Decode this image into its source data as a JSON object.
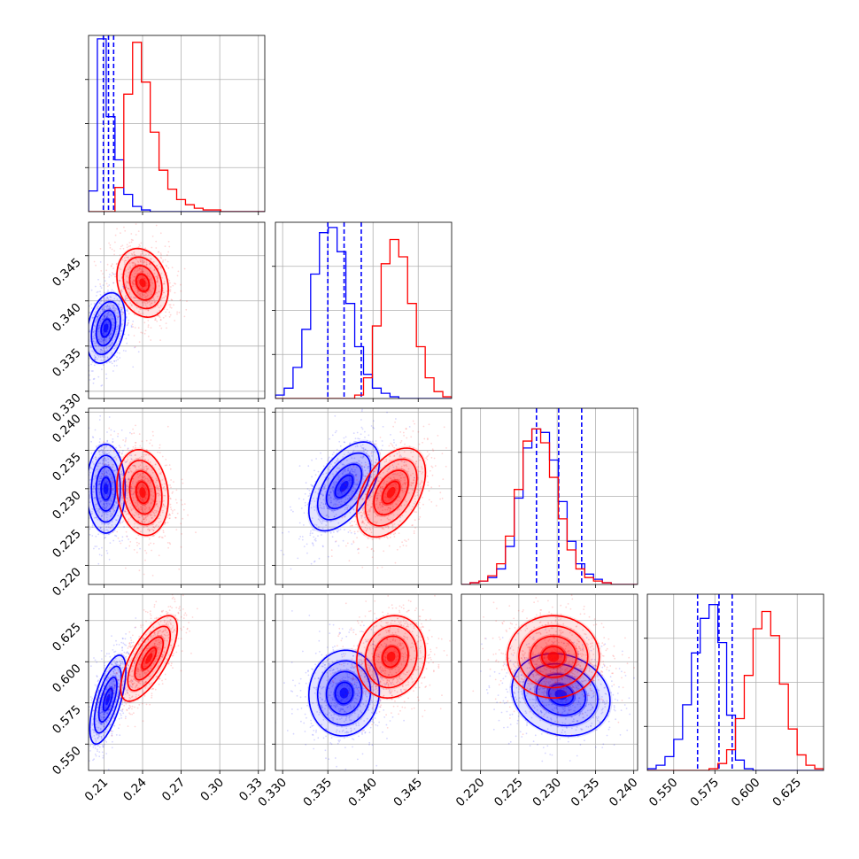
{
  "chart_data": {
    "type": "corner",
    "series": [
      {
        "name": "",
        "color": "#0000ff"
      },
      {
        "name": "",
        "color": "#ff0000"
      }
    ],
    "parameters": [
      {
        "ticks": [
          "0.21",
          "0.24",
          "0.27",
          "0.30",
          "0.33"
        ],
        "range": [
          0.198,
          0.335
        ],
        "tick_values": [
          0.21,
          0.24,
          0.27,
          0.3,
          0.33
        ]
      },
      {
        "ticks": [
          "0.330",
          "0.335",
          "0.340",
          "0.345"
        ],
        "range": [
          0.3292,
          0.3487
        ],
        "tick_values": [
          0.33,
          0.335,
          0.34,
          0.345
        ]
      },
      {
        "ticks": [
          "0.220",
          "0.225",
          "0.230",
          "0.235",
          "0.240"
        ],
        "range": [
          0.2175,
          0.2405
        ],
        "tick_values": [
          0.22,
          0.225,
          0.23,
          0.235,
          0.24
        ]
      },
      {
        "ticks": [
          "0.550",
          "0.575",
          "0.600",
          "0.625"
        ],
        "range": [
          0.534,
          0.641
        ],
        "tick_values": [
          0.55,
          0.575,
          0.6,
          0.625
        ]
      }
    ],
    "histograms": {
      "blue": [
        {
          "min": 0.198,
          "max": 0.335,
          "counts": [
            12,
            100,
            55,
            30,
            10,
            3,
            1,
            0,
            0,
            0,
            0,
            0,
            0,
            0,
            0,
            0,
            0,
            0,
            0,
            0
          ],
          "quantiles": [
            0.2095,
            0.2135,
            0.2175
          ]
        },
        {
          "min": 0.3292,
          "max": 0.3487,
          "counts": [
            2,
            6,
            18,
            40,
            72,
            96,
            99,
            85,
            55,
            30,
            14,
            6,
            3,
            1,
            0,
            0,
            0,
            0,
            0,
            0
          ],
          "quantiles": [
            0.335,
            0.3368,
            0.3387
          ]
        },
        {
          "min": 0.2175,
          "max": 0.2405,
          "counts": [
            0,
            1,
            2,
            4,
            9,
            22,
            50,
            79,
            90,
            88,
            72,
            48,
            25,
            12,
            6,
            3,
            1,
            0,
            0,
            0
          ],
          "quantiles": [
            0.2273,
            0.2302,
            0.2332
          ]
        },
        {
          "min": 0.534,
          "max": 0.641,
          "counts": [
            1,
            3,
            8,
            18,
            38,
            68,
            88,
            96,
            74,
            32,
            6,
            1,
            0,
            0,
            0,
            0,
            0,
            0,
            0,
            0
          ],
          "quantiles": [
            0.5645,
            0.5775,
            0.5855
          ]
        }
      ],
      "red": [
        {
          "min": 0.198,
          "max": 0.335,
          "counts": [
            0,
            0,
            0,
            14,
            68,
            98,
            75,
            46,
            24,
            13,
            7,
            4,
            2,
            1,
            1,
            0,
            0,
            0,
            0,
            0
          ],
          "quantiles": []
        },
        {
          "min": 0.3292,
          "max": 0.3487,
          "counts": [
            0,
            0,
            0,
            0,
            0,
            0,
            0,
            0,
            0,
            2,
            12,
            42,
            78,
            92,
            82,
            55,
            30,
            12,
            4,
            1
          ],
          "quantiles": []
        },
        {
          "min": 0.2175,
          "max": 0.2405,
          "counts": [
            0,
            1,
            2,
            5,
            12,
            28,
            55,
            83,
            90,
            82,
            62,
            38,
            20,
            9,
            4,
            2,
            1,
            0,
            0,
            0
          ],
          "quantiles": []
        },
        {
          "min": 0.534,
          "max": 0.641,
          "counts": [
            0,
            0,
            0,
            0,
            0,
            0,
            0,
            1,
            4,
            12,
            30,
            55,
            82,
            92,
            78,
            50,
            24,
            9,
            3,
            1
          ],
          "quantiles": []
        }
      ]
    },
    "blobs": {
      "blue": [
        {
          "pair": [
            0,
            1
          ],
          "mx": 0.2115,
          "my": 0.337,
          "sx": 0.0075,
          "sy": 0.00195,
          "rho": 0.3
        },
        {
          "pair": [
            0,
            2
          ],
          "mx": 0.2115,
          "my": 0.23,
          "sx": 0.0075,
          "sy": 0.0029,
          "rho": 0.0
        },
        {
          "pair": [
            0,
            3
          ],
          "mx": 0.213,
          "my": 0.577,
          "sx": 0.007,
          "sy": 0.0135,
          "rho": 0.65
        },
        {
          "pair": [
            1,
            2
          ],
          "mx": 0.3368,
          "my": 0.2303,
          "sx": 0.00195,
          "sy": 0.0029,
          "rho": 0.55
        },
        {
          "pair": [
            1,
            3
          ],
          "mx": 0.3368,
          "my": 0.581,
          "sx": 0.00195,
          "sy": 0.013,
          "rho": 0.05
        },
        {
          "pair": [
            2,
            3
          ],
          "mx": 0.2305,
          "my": 0.58,
          "sx": 0.0032,
          "sy": 0.0125,
          "rho": -0.15
        }
      ],
      "red": [
        {
          "pair": [
            0,
            1
          ],
          "mx": 0.24,
          "my": 0.342,
          "sx": 0.01,
          "sy": 0.0019,
          "rho": -0.2
        },
        {
          "pair": [
            0,
            2
          ],
          "mx": 0.24,
          "my": 0.2295,
          "sx": 0.01,
          "sy": 0.0028,
          "rho": -0.15
        },
        {
          "pair": [
            0,
            3
          ],
          "mx": 0.245,
          "my": 0.602,
          "sx": 0.011,
          "sy": 0.013,
          "rho": 0.7
        },
        {
          "pair": [
            1,
            2
          ],
          "mx": 0.342,
          "my": 0.2295,
          "sx": 0.0019,
          "sy": 0.0029,
          "rho": 0.45
        },
        {
          "pair": [
            1,
            3
          ],
          "mx": 0.342,
          "my": 0.603,
          "sx": 0.0019,
          "sy": 0.0125,
          "rho": 0.1
        },
        {
          "pair": [
            2,
            3
          ],
          "mx": 0.2295,
          "my": 0.603,
          "sx": 0.003,
          "sy": 0.0125,
          "rho": 0.0
        }
      ]
    },
    "grid": true
  }
}
